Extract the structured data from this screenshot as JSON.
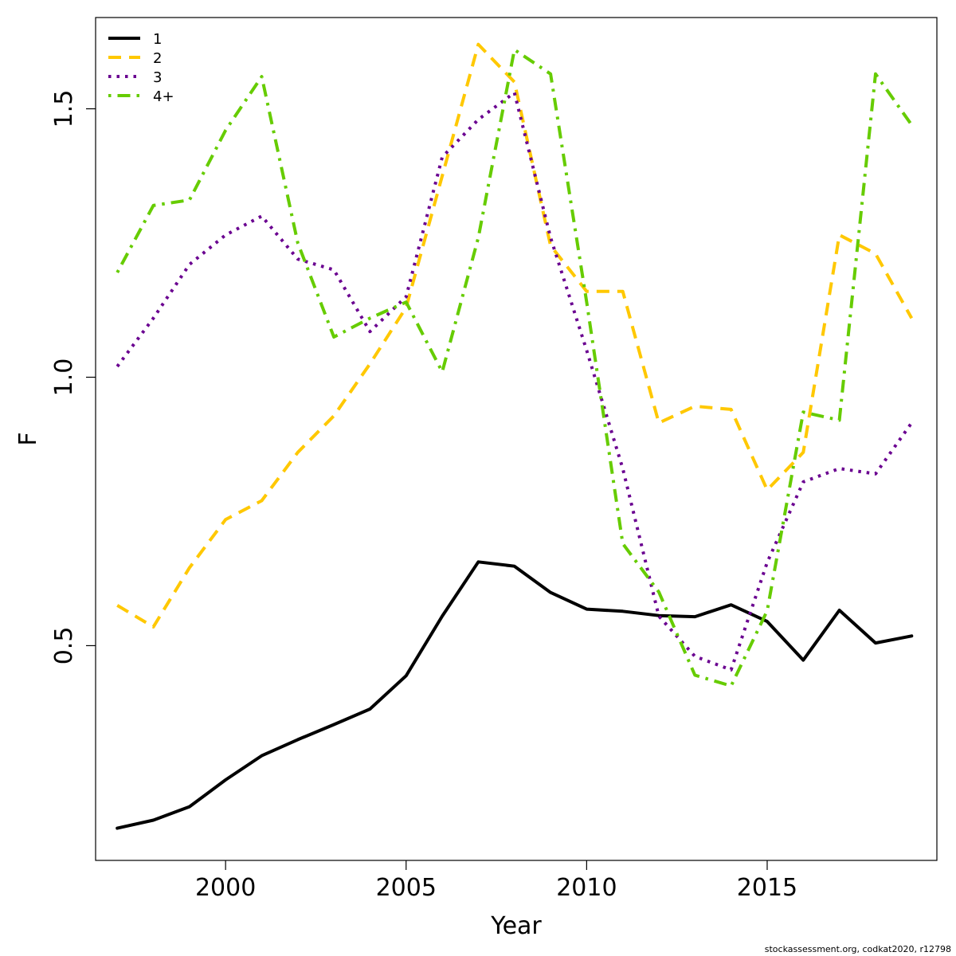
{
  "chart_data": {
    "type": "line",
    "title": "",
    "xlabel": "Year",
    "ylabel": "F",
    "xlim": [
      1996.4,
      2019.7
    ],
    "ylim": [
      0.1,
      1.67
    ],
    "xticks": [
      2000,
      2005,
      2010,
      2015
    ],
    "yticks": [
      0.5,
      1.0,
      1.5
    ],
    "ytick_labels": [
      "0.5",
      "1.0",
      "1.5"
    ],
    "grid": false,
    "legend_position": "top-left",
    "x": [
      1997,
      1998,
      1999,
      2000,
      2001,
      2002,
      2003,
      2004,
      2005,
      2006,
      2007,
      2008,
      2009,
      2010,
      2011,
      2012,
      2013,
      2014,
      2015,
      2016,
      2017,
      2018,
      2019
    ],
    "series": [
      {
        "name": "1",
        "color": "#000000",
        "dash": "solid",
        "values": [
          0.16,
          0.175,
          0.2,
          0.25,
          0.295,
          0.325,
          0.353,
          0.382,
          0.444,
          0.555,
          0.656,
          0.648,
          0.599,
          0.568,
          0.564,
          0.556,
          0.554,
          0.576,
          0.545,
          0.473,
          0.566,
          0.505,
          0.518
        ]
      },
      {
        "name": "2",
        "color": "#FFC800",
        "dash": "dashed",
        "values": [
          0.575,
          0.535,
          0.645,
          0.735,
          0.77,
          0.86,
          0.928,
          1.025,
          1.13,
          1.375,
          1.62,
          1.55,
          1.245,
          1.16,
          1.16,
          0.915,
          0.946,
          0.94,
          0.79,
          0.86,
          1.265,
          1.23,
          1.11
        ]
      },
      {
        "name": "3",
        "color": "#6A0090",
        "dash": "dotted",
        "values": [
          1.02,
          1.11,
          1.21,
          1.265,
          1.3,
          1.22,
          1.2,
          1.085,
          1.15,
          1.41,
          1.48,
          1.53,
          1.26,
          1.05,
          0.83,
          0.555,
          0.48,
          0.455,
          0.655,
          0.805,
          0.83,
          0.82,
          0.915
        ]
      },
      {
        "name": "4+",
        "color": "#66CC00",
        "dash": "dashdot",
        "values": [
          1.195,
          1.32,
          1.33,
          1.46,
          1.56,
          1.25,
          1.075,
          1.11,
          1.14,
          1.01,
          1.26,
          1.61,
          1.565,
          1.14,
          0.69,
          0.6,
          0.445,
          0.425,
          0.565,
          0.935,
          0.92,
          1.565,
          1.47
        ]
      }
    ]
  },
  "credit": "stockassessment.org, codkat2020, r12798"
}
